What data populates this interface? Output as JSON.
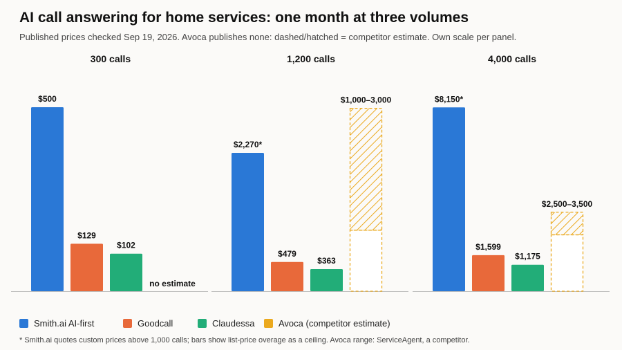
{
  "title": "AI call answering for home services: one month at three volumes",
  "subtitle": "Published prices checked Sep 19, 2026. Avoca publishes none: dashed/hatched = competitor estimate. Own scale per panel.",
  "legend": [
    {
      "label": "Smith.ai AI-first",
      "color": "#2a78d6"
    },
    {
      "label": "Goodcall",
      "color": "#e8693a"
    },
    {
      "label": "Claudessa",
      "color": "#22ad78"
    },
    {
      "label": "Avoca (competitor estimate)",
      "color": "#eba91e"
    }
  ],
  "footnote": "* Smith.ai quotes custom prices above 1,000 calls; bars show list-price overage as a ceiling. Avoca range: ServiceAgent, a competitor.",
  "colors": {
    "smith": "#2a78d6",
    "goodcall": "#e8693a",
    "claudessa": "#22ad78",
    "avoca": "#eba91e"
  },
  "chart_data": [
    {
      "type": "bar",
      "title": "300 calls",
      "categories": [
        "Smith.ai AI-first",
        "Goodcall",
        "Claudessa",
        "Avoca (competitor estimate)"
      ],
      "values": [
        500,
        129,
        102,
        null
      ],
      "labels": [
        "$500",
        "$129",
        "$102",
        "no estimate"
      ],
      "ylim": [
        0,
        530
      ]
    },
    {
      "type": "bar",
      "title": "1,200 calls",
      "categories": [
        "Smith.ai AI-first",
        "Goodcall",
        "Claudessa",
        "Avoca (competitor estimate)"
      ],
      "values": [
        2270,
        479,
        363,
        [
          1000,
          3000
        ]
      ],
      "labels": [
        "$2,270*",
        "$479",
        "$363",
        "$1,000–3,000"
      ],
      "ylim": [
        0,
        3200
      ]
    },
    {
      "type": "bar",
      "title": "4,000 calls",
      "categories": [
        "Smith.ai AI-first",
        "Goodcall",
        "Claudessa",
        "Avoca (competitor estimate)"
      ],
      "values": [
        8150,
        1599,
        1175,
        [
          2500,
          3500
        ]
      ],
      "labels": [
        "$8,150*",
        "$1,599",
        "$1,175",
        "$2,500–3,500"
      ],
      "ylim": [
        0,
        8650
      ]
    }
  ]
}
